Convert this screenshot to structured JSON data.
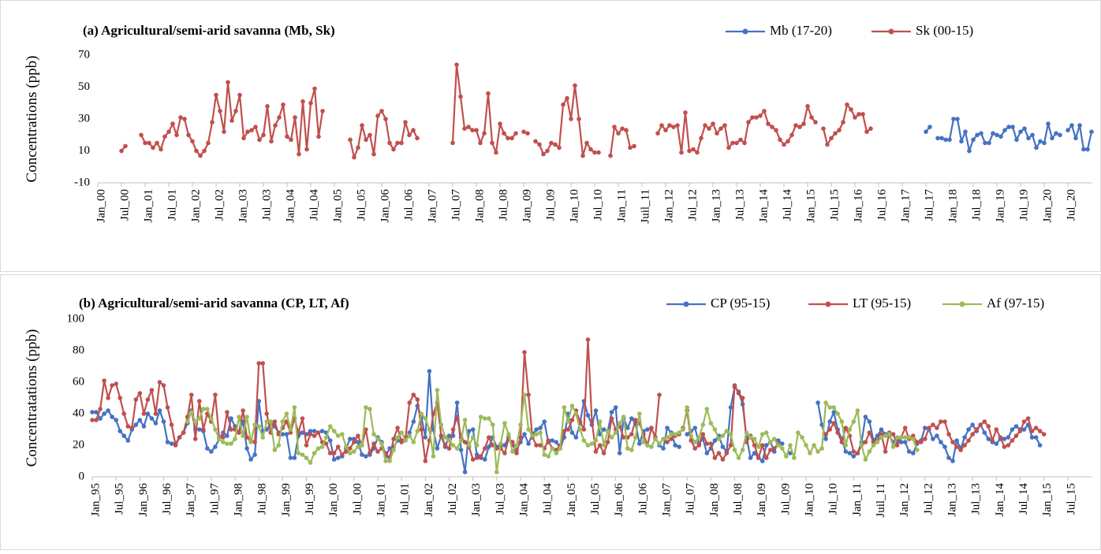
{
  "chart_data": [
    {
      "type": "line",
      "title": "(a) Agricultural/semi-arid savanna (Mb, Sk)",
      "ylabel": "Concentrations (ppb)",
      "xlabel": "",
      "ylim": [
        -10,
        70
      ],
      "yticks": [
        "-10",
        "10",
        "30",
        "50",
        "70"
      ],
      "grid": false,
      "legend_position": "top-right",
      "x_start": "Jan_00",
      "x_step_months": 1,
      "xticks": [
        "Jan_00",
        "Jul_00",
        "Jan_01",
        "Jul_01",
        "Jan_02",
        "Jul_02",
        "Jan_03",
        "Jul_03",
        "Jan_04",
        "Jul_04",
        "Jan_05",
        "Jul_05",
        "Jan_06",
        "Jul_06",
        "Jan_07",
        "Jul_07",
        "Jan_08",
        "Jul_08",
        "Jan_09",
        "Jul_09",
        "Jan_10",
        "Jul_10",
        "Jan_11",
        "Juil_11",
        "Jan_12",
        "Jul_12",
        "Jan_13",
        "Jul_13",
        "Jan_14",
        "Jul_14",
        "Jan_15",
        "Jul_15",
        "Jan_16",
        "Jul_16",
        "Jan_17",
        "Jul_17",
        "Jan_18",
        "Jul_18",
        "Jan_19",
        "Jul_19",
        "Jan_20",
        "Jul_20"
      ],
      "series": [
        {
          "name": "Mb (17-20)",
          "color": "#4472c4",
          "start_index": 210,
          "values": [
            22,
            25,
            null,
            18,
            18,
            17,
            17,
            30,
            30,
            16,
            22,
            10,
            17,
            20,
            21,
            15,
            15,
            21,
            20,
            19,
            23,
            25,
            25,
            17,
            22,
            24,
            18,
            20,
            12,
            16,
            15,
            27,
            18,
            21,
            20,
            null,
            23,
            26,
            18,
            26,
            11,
            11,
            22
          ]
        },
        {
          "name": "Sk (00-15)",
          "color": "#c0504d",
          "start_index": 6,
          "values": [
            10,
            13,
            null,
            null,
            null,
            20,
            15,
            15,
            12,
            15,
            11,
            19,
            22,
            27,
            20,
            31,
            30,
            20,
            16,
            10,
            7,
            10,
            15,
            28,
            45,
            35,
            22,
            53,
            29,
            35,
            45,
            18,
            22,
            23,
            25,
            17,
            20,
            38,
            16,
            26,
            31,
            39,
            19,
            17,
            31,
            8,
            41,
            11,
            40,
            49,
            19,
            35,
            null,
            null,
            null,
            null,
            null,
            null,
            17,
            6,
            12,
            26,
            17,
            20,
            8,
            32,
            35,
            30,
            15,
            11,
            15,
            15,
            28,
            20,
            23,
            18,
            null,
            null,
            null,
            null,
            null,
            null,
            null,
            null,
            15,
            64,
            44,
            24,
            25,
            23,
            23,
            15,
            21,
            46,
            15,
            9,
            27,
            21,
            18,
            18,
            21,
            null,
            22,
            21,
            null,
            16,
            14,
            8,
            10,
            15,
            14,
            12,
            39,
            43,
            30,
            51,
            30,
            7,
            15,
            11,
            9,
            9,
            null,
            null,
            7,
            25,
            21,
            24,
            23,
            12,
            13,
            null,
            null,
            null,
            null,
            null,
            21,
            26,
            23,
            26,
            25,
            26,
            9,
            34,
            10,
            11,
            9,
            18,
            26,
            24,
            27,
            21,
            24,
            26,
            12,
            15,
            15,
            17,
            15,
            28,
            31,
            31,
            32,
            35,
            27,
            25,
            23,
            17,
            14,
            16,
            20,
            26,
            25,
            27,
            38,
            31,
            28,
            null,
            24,
            14,
            18,
            21,
            23,
            28,
            39,
            36,
            31,
            33,
            33,
            22,
            24
          ]
        }
      ]
    },
    {
      "type": "line",
      "title": "(b) Agricultural/semi-arid savanna (CP, LT, Af)",
      "ylabel": "Concentratations (ppb)",
      "xlabel": "",
      "ylim": [
        0,
        100
      ],
      "yticks": [
        "0",
        "20",
        "40",
        "60",
        "80",
        "100"
      ],
      "grid": false,
      "legend_position": "top-right",
      "x_start": "Jan_95",
      "x_step_months": 1,
      "xticks": [
        "Jan_95",
        "Jul_95",
        "Jan_96",
        "Jul_96",
        "Jan_97",
        "Jul_97",
        "Jan_98",
        "Jul_98",
        "Jan_99",
        "Jul_99",
        "Jan_00",
        "Jul_00",
        "Jan_01",
        "Jul_01",
        "Jan_02",
        "Jul_02",
        "Jan_03",
        "Jul_03",
        "Jan_04",
        "Jul_04",
        "Jan_05",
        "Jul_05",
        "Jan_06",
        "Jul_06",
        "Jan_07",
        "Jul_07",
        "Jan_08",
        "Jul_08",
        "Jan_09",
        "Jul_09",
        "Jan_10",
        "Jul_10",
        "Jan_11",
        "Juil_11",
        "Jan_12",
        "Jul_12",
        "Jan_13",
        "Jul_13",
        "Jan_14",
        "Jul_14",
        "Jan_15",
        "Jul_15"
      ],
      "series": [
        {
          "name": "CP (95-15)",
          "color": "#4472c4",
          "start_index": 0,
          "values": [
            41,
            41,
            37,
            40,
            42,
            38,
            36,
            29,
            26,
            23,
            30,
            33,
            36,
            32,
            40,
            37,
            34,
            42,
            35,
            22,
            21,
            21,
            25,
            28,
            34,
            42,
            30,
            30,
            29,
            18,
            16,
            19,
            24,
            28,
            26,
            37,
            32,
            28,
            35,
            18,
            11,
            14,
            48,
            29,
            30,
            34,
            32,
            28,
            27,
            27,
            12,
            12,
            26,
            28,
            27,
            29,
            29,
            28,
            29,
            28,
            23,
            11,
            12,
            13,
            18,
            24,
            24,
            22,
            14,
            13,
            14,
            18,
            25,
            22,
            13,
            18,
            19,
            23,
            23,
            24,
            28,
            35,
            45,
            38,
            25,
            67,
            30,
            18,
            26,
            19,
            26,
            26,
            47,
            17,
            3,
            29,
            30,
            14,
            12,
            11,
            19,
            25,
            19,
            20,
            20,
            25,
            20,
            17,
            22,
            27,
            21,
            27,
            30,
            31,
            35,
            22,
            23,
            22,
            18,
            25,
            40,
            28,
            25,
            34,
            48,
            39,
            33,
            42,
            27,
            30,
            29,
            41,
            44,
            15,
            37,
            31,
            37,
            34,
            21,
            29,
            30,
            31,
            25,
            20,
            18,
            31,
            28,
            20,
            19,
            null,
            27,
            29,
            31,
            21,
            24,
            15,
            18,
            23,
            26,
            19,
            16,
            44,
            57,
            54,
            46,
            25,
            12,
            15,
            12,
            10,
            20,
            22,
            16,
            23,
            21,
            null,
            15,
            null,
            null,
            null,
            null,
            null,
            null,
            47,
            33,
            24,
            35,
            41,
            30,
            24,
            16,
            15,
            13,
            15,
            22,
            38,
            35,
            23,
            26,
            30,
            27,
            26,
            22,
            23,
            22,
            22,
            16,
            15,
            21,
            23,
            31,
            30,
            24,
            26,
            22,
            19,
            12,
            10,
            23,
            18,
            25,
            30,
            33,
            29,
            33,
            28,
            24,
            22,
            21,
            24,
            24,
            25,
            30,
            32,
            30,
            30,
            33,
            25,
            25,
            20
          ]
        },
        {
          "name": "LT (95-15)",
          "color": "#c0504d",
          "start_index": 0,
          "values": [
            36,
            36,
            43,
            61,
            50,
            58,
            59,
            50,
            40,
            32,
            31,
            49,
            53,
            40,
            49,
            55,
            40,
            60,
            58,
            44,
            33,
            20,
            25,
            28,
            38,
            52,
            24,
            48,
            30,
            40,
            35,
            52,
            25,
            25,
            41,
            30,
            30,
            28,
            42,
            25,
            23,
            22,
            72,
            72,
            40,
            28,
            35,
            27,
            31,
            35,
            28,
            37,
            28,
            37,
            20,
            27,
            26,
            28,
            22,
            21,
            15,
            15,
            19,
            14,
            16,
            18,
            22,
            26,
            20,
            30,
            15,
            21,
            16,
            18,
            15,
            12,
            24,
            31,
            22,
            25,
            47,
            52,
            49,
            30,
            10,
            23,
            40,
            47,
            26,
            20,
            18,
            30,
            38,
            25,
            22,
            19,
            11,
            12,
            13,
            18,
            25,
            20,
            18,
            18,
            15,
            24,
            22,
            15,
            25,
            79,
            52,
            25,
            20,
            20,
            18,
            23,
            18,
            17,
            20,
            29,
            30,
            36,
            42,
            35,
            30,
            87,
            35,
            16,
            20,
            15,
            22,
            37,
            30,
            32,
            25,
            25,
            27,
            36,
            34,
            27,
            20,
            31,
            25,
            52,
            null,
            22,
            24,
            26,
            27,
            31,
            42,
            23,
            18,
            20,
            27,
            21,
            21,
            12,
            15,
            11,
            15,
            20,
            58,
            53,
            50,
            22,
            26,
            20,
            12,
            20,
            12,
            17,
            18,
            21,
            null,
            null,
            null,
            null,
            null,
            null,
            null,
            null,
            null,
            null,
            null,
            27,
            30,
            34,
            28,
            22,
            31,
            26,
            16,
            15,
            20,
            22,
            28,
            22,
            23,
            27,
            16,
            28,
            27,
            20,
            25,
            31,
            24,
            26,
            22,
            22,
            24,
            31,
            33,
            31,
            35,
            35,
            27,
            22,
            19,
            17,
            20,
            23,
            27,
            30,
            33,
            35,
            32,
            23,
            30,
            25,
            19,
            20,
            23,
            26,
            29,
            35,
            37,
            29,
            31,
            29,
            27
          ]
        },
        {
          "name": "Af (97-15)",
          "color": "#9bbb59",
          "start_index": 24,
          "values": [
            35,
            41,
            35,
            37,
            43,
            43,
            37,
            30,
            24,
            22,
            21,
            21,
            24,
            38,
            26,
            38,
            22,
            33,
            32,
            25,
            35,
            35,
            17,
            20,
            35,
            40,
            30,
            44,
            15,
            14,
            12,
            9,
            15,
            18,
            19,
            25,
            32,
            29,
            26,
            27,
            19,
            15,
            16,
            19,
            20,
            44,
            43,
            27,
            24,
            21,
            10,
            10,
            17,
            25,
            28,
            23,
            26,
            22,
            29,
            40,
            37,
            30,
            13,
            55,
            33,
            25,
            23,
            20,
            18,
            23,
            36,
            20,
            25,
            20,
            38,
            37,
            37,
            33,
            3,
            21,
            34,
            27,
            16,
            20,
            33,
            52,
            30,
            26,
            27,
            28,
            14,
            13,
            18,
            15,
            18,
            44,
            35,
            45,
            40,
            30,
            23,
            20,
            21,
            23,
            35,
            20,
            29,
            25,
            28,
            34,
            38,
            18,
            17,
            25,
            40,
            22,
            20,
            19,
            24,
            21,
            24,
            25,
            27,
            27,
            28,
            30,
            44,
            26,
            22,
            25,
            33,
            43,
            34,
            30,
            24,
            26,
            29,
            27,
            17,
            12,
            17,
            28,
            25,
            24,
            19,
            27,
            28,
            22,
            24,
            20,
            18,
            13,
            20,
            12,
            28,
            25,
            20,
            15,
            20,
            16,
            18,
            47,
            44,
            44,
            40,
            35,
            20,
            30,
            35,
            42,
            20,
            11,
            16,
            20,
            22,
            25,
            26,
            27,
            19,
            25,
            25,
            25,
            25,
            24,
            17,
            null,
            null,
            null,
            null,
            null,
            null,
            null,
            null,
            null,
            null,
            null,
            null,
            null,
            null,
            null,
            null,
            null,
            null,
            null,
            null,
            null,
            null,
            null,
            null,
            null,
            null,
            null,
            null,
            null,
            null,
            null,
            null,
            null,
            null,
            null,
            null,
            null,
            null,
            null,
            null,
            null,
            null,
            null,
            null,
            null,
            null,
            null,
            null,
            null,
            null,
            null,
            null,
            null,
            null,
            null,
            null,
            null,
            null,
            null,
            null,
            null,
            null,
            null,
            null,
            null,
            null,
            null,
            null,
            null,
            null,
            null,
            null,
            null,
            null,
            null,
            null,
            null,
            null,
            null,
            null,
            null,
            null,
            null,
            null,
            null,
            null,
            null,
            null
          ]
        }
      ]
    }
  ]
}
